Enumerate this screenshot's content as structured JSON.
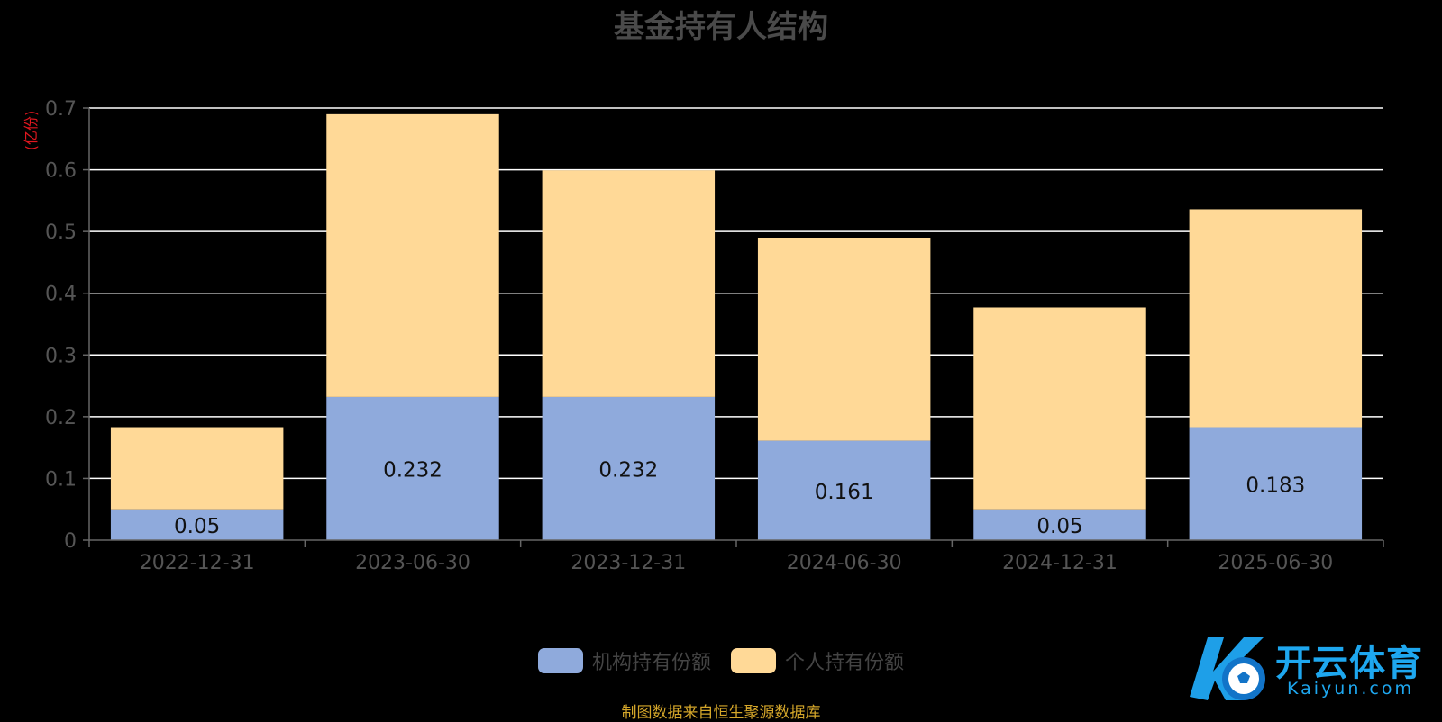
{
  "page": {
    "title": "基金持有人结构",
    "source_note": "制图数据来自恒生聚源数据库",
    "watermark": {
      "brand_cn": "开云体育",
      "brand_en": "Kaiyun.com"
    }
  },
  "chart_data": {
    "type": "bar",
    "stacked": true,
    "title": "基金持有人结构",
    "ylabel": "(亿份)",
    "xlabel": "",
    "ylim": [
      0,
      0.7
    ],
    "yticks": [
      "0",
      "0.1",
      "0.2",
      "0.3",
      "0.4",
      "0.5",
      "0.6",
      "0.7"
    ],
    "categories": [
      "2022-12-31",
      "2023-06-30",
      "2023-12-31",
      "2024-06-30",
      "2024-12-31",
      "2025-06-30"
    ],
    "series": [
      {
        "name": "机构持有份额",
        "color": "#8faadc",
        "values": [
          0.05,
          0.232,
          0.232,
          0.161,
          0.05,
          0.183
        ],
        "labels": [
          "0.05",
          "0.232",
          "0.232",
          "0.161",
          "0.05",
          "0.183"
        ]
      },
      {
        "name": "个人持有份额",
        "color": "#ffd997",
        "values": [
          0.133,
          0.458,
          0.367,
          0.329,
          0.327,
          0.353
        ]
      }
    ],
    "grid": true,
    "legend_position": "bottom-center"
  }
}
